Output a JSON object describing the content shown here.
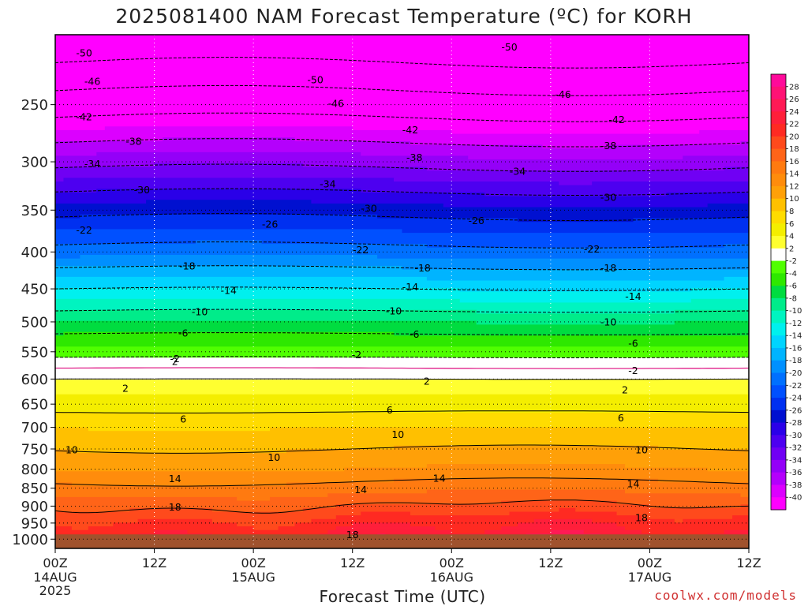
{
  "title": "2025081400 NAM Forecast Temperature (ºC) for KORH",
  "xlabel": "Forecast Time (UTC)",
  "credit": "coolwx.com/models",
  "chart_data": {
    "type": "heatmap",
    "title": "2025081400 NAM Forecast Temperature (ºC) for KORH",
    "xlabel": "Forecast Time (UTC)",
    "ylabel": "",
    "x_ticks": [
      {
        "hour": 0,
        "label": "00Z",
        "sub": [
          "14AUG",
          "2025"
        ]
      },
      {
        "hour": 12,
        "label": "12Z",
        "sub": []
      },
      {
        "hour": 24,
        "label": "00Z",
        "sub": [
          "15AUG"
        ]
      },
      {
        "hour": 36,
        "label": "12Z",
        "sub": []
      },
      {
        "hour": 48,
        "label": "00Z",
        "sub": [
          "16AUG"
        ]
      },
      {
        "hour": 60,
        "label": "12Z",
        "sub": []
      },
      {
        "hour": 72,
        "label": "00Z",
        "sub": [
          "17AUG"
        ]
      },
      {
        "hour": 84,
        "label": "12Z",
        "sub": []
      }
    ],
    "xlim": [
      0,
      84
    ],
    "y_ticks": [
      250,
      300,
      350,
      400,
      450,
      500,
      550,
      600,
      650,
      700,
      750,
      800,
      850,
      900,
      950,
      1000
    ],
    "ylim_hPa": [
      200,
      1030
    ],
    "y_scale": "log-pressure",
    "grid": true,
    "colorbar": {
      "labels": [
        28,
        26,
        24,
        22,
        20,
        18,
        16,
        14,
        12,
        10,
        8,
        6,
        4,
        2,
        -2,
        -4,
        -6,
        -8,
        -10,
        -12,
        -14,
        -16,
        -18,
        -20,
        -22,
        -24,
        -26,
        -28,
        -30,
        -32,
        -34,
        -36,
        -38,
        -40
      ],
      "colors": [
        "#ff0a9a",
        "#ff1275",
        "#ff1a55",
        "#ff1f3a",
        "#ff2a22",
        "#ff4a1c",
        "#ff6418",
        "#ff7a10",
        "#ff8c0c",
        "#ffa008",
        "#ffc000",
        "#ffdc00",
        "#f4ee00",
        "#ffff30",
        "#ffffff",
        "#50ff00",
        "#2ee800",
        "#00dc40",
        "#00ec8a",
        "#00f4c0",
        "#00f0ee",
        "#00d4ff",
        "#00b4ff",
        "#0090ff",
        "#0070ff",
        "#0050ff",
        "#0030f0",
        "#0010d0",
        "#2a00e8",
        "#4d00f0",
        "#7000f4",
        "#9400f8",
        "#b400fc",
        "#dc00ff",
        "#ff00ff"
      ],
      "position": "right"
    },
    "profile_hour0": [
      {
        "p": 200,
        "t": -54
      },
      {
        "p": 250,
        "t": -44
      },
      {
        "p": 300,
        "t": -35
      },
      {
        "p": 350,
        "t": -27
      },
      {
        "p": 400,
        "t": -21
      },
      {
        "p": 450,
        "t": -14
      },
      {
        "p": 500,
        "t": -8
      },
      {
        "p": 550,
        "t": -3
      },
      {
        "p": 600,
        "t": 2
      },
      {
        "p": 650,
        "t": 5
      },
      {
        "p": 700,
        "t": 8
      },
      {
        "p": 750,
        "t": 10
      },
      {
        "p": 800,
        "t": 12
      },
      {
        "p": 850,
        "t": 15
      },
      {
        "p": 900,
        "t": 18
      },
      {
        "p": 950,
        "t": 21
      },
      {
        "p": 1000,
        "t": 23
      }
    ],
    "contour_labels": [
      {
        "text": "-50",
        "hour": 3.5,
        "p": 212
      },
      {
        "text": "-46",
        "hour": 4.5,
        "p": 232
      },
      {
        "text": "-42",
        "hour": 3.5,
        "p": 260
      },
      {
        "text": "-38",
        "hour": 9.5,
        "p": 281
      },
      {
        "text": "-34",
        "hour": 4.5,
        "p": 302
      },
      {
        "text": "-30",
        "hour": 10.5,
        "p": 328
      },
      {
        "text": "-22",
        "hour": 3.5,
        "p": 373
      },
      {
        "text": "-18",
        "hour": 16,
        "p": 418
      },
      {
        "text": "-14",
        "hour": 21,
        "p": 452
      },
      {
        "text": "-10",
        "hour": 17.5,
        "p": 484
      },
      {
        "text": "-6",
        "hour": 15.5,
        "p": 518
      },
      {
        "text": "-2",
        "hour": 14.5,
        "p": 562
      },
      {
        "text": "-50",
        "hour": 31.5,
        "p": 231
      },
      {
        "text": "-46",
        "hour": 34,
        "p": 249
      },
      {
        "text": "-42",
        "hour": 43,
        "p": 271
      },
      {
        "text": "-38",
        "hour": 43.5,
        "p": 296
      },
      {
        "text": "-34",
        "hour": 33,
        "p": 322
      },
      {
        "text": "-30",
        "hour": 38,
        "p": 348
      },
      {
        "text": "-26",
        "hour": 26,
        "p": 366
      },
      {
        "text": "-22",
        "hour": 37,
        "p": 397
      },
      {
        "text": "-18",
        "hour": 44.5,
        "p": 421
      },
      {
        "text": "-14",
        "hour": 43,
        "p": 447
      },
      {
        "text": "-10",
        "hour": 41,
        "p": 483
      },
      {
        "text": "-6",
        "hour": 43.5,
        "p": 520
      },
      {
        "text": "-2",
        "hour": 36.5,
        "p": 555
      },
      {
        "text": "-50",
        "hour": 55,
        "p": 208
      },
      {
        "text": "-46",
        "hour": 61.5,
        "p": 242
      },
      {
        "text": "-42",
        "hour": 68,
        "p": 262
      },
      {
        "text": "-38",
        "hour": 67,
        "p": 285
      },
      {
        "text": "-34",
        "hour": 56,
        "p": 309
      },
      {
        "text": "-30",
        "hour": 67,
        "p": 336
      },
      {
        "text": "-26",
        "hour": 51,
        "p": 362
      },
      {
        "text": "-22",
        "hour": 65,
        "p": 396
      },
      {
        "text": "-18",
        "hour": 67,
        "p": 421
      },
      {
        "text": "-14",
        "hour": 70,
        "p": 461
      },
      {
        "text": "-10",
        "hour": 67,
        "p": 500
      },
      {
        "text": "-6",
        "hour": 70,
        "p": 535
      },
      {
        "text": "-2",
        "hour": 70,
        "p": 584
      },
      {
        "text": "2",
        "hour": 14.5,
        "p": 567
      },
      {
        "text": "2",
        "hour": 8.5,
        "p": 618
      },
      {
        "text": "2",
        "hour": 45,
        "p": 604
      },
      {
        "text": "2",
        "hour": 69,
        "p": 621
      },
      {
        "text": "6",
        "hour": 15.5,
        "p": 682
      },
      {
        "text": "6",
        "hour": 40.5,
        "p": 662
      },
      {
        "text": "6",
        "hour": 68.5,
        "p": 679
      },
      {
        "text": "10",
        "hour": 2,
        "p": 752
      },
      {
        "text": "10",
        "hour": 26.5,
        "p": 770
      },
      {
        "text": "10",
        "hour": 41.5,
        "p": 716
      },
      {
        "text": "10",
        "hour": 71,
        "p": 752
      },
      {
        "text": "14",
        "hour": 14.5,
        "p": 824
      },
      {
        "text": "14",
        "hour": 37,
        "p": 854
      },
      {
        "text": "14",
        "hour": 46.5,
        "p": 823
      },
      {
        "text": "14",
        "hour": 70,
        "p": 838
      },
      {
        "text": "18",
        "hour": 14.5,
        "p": 902
      },
      {
        "text": "18",
        "hour": 36,
        "p": 985
      },
      {
        "text": "18",
        "hour": 71,
        "p": 934
      }
    ]
  }
}
